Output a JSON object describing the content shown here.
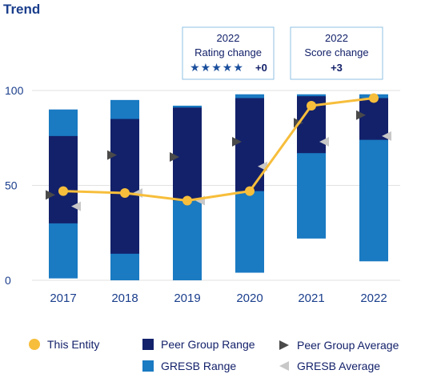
{
  "chart_data": {
    "type": "bar",
    "title": "Trend",
    "categories": [
      "2017",
      "2018",
      "2019",
      "2020",
      "2021",
      "2022"
    ],
    "ylim": [
      0,
      100
    ],
    "yticks": [
      0,
      50,
      100
    ],
    "grid": true,
    "series": [
      {
        "name": "GRESB Range",
        "kind": "range-bar",
        "color": "#1a7ac2",
        "low": [
          1,
          0,
          0,
          4,
          22,
          10
        ],
        "high": [
          90,
          95,
          92,
          98,
          98,
          98
        ]
      },
      {
        "name": "Peer Group Range",
        "kind": "range-bar",
        "color": "#13216a",
        "low": [
          30,
          14,
          42,
          47,
          67,
          74
        ],
        "high": [
          76,
          85,
          91,
          96,
          97,
          96
        ]
      },
      {
        "name": "This Entity",
        "kind": "line",
        "color": "#f7be3b",
        "values": [
          47,
          46,
          42,
          47,
          92,
          96
        ]
      },
      {
        "name": "Peer Group Average",
        "kind": "marker",
        "color": "#4a4a4a",
        "values": [
          45,
          66,
          65,
          73,
          83,
          87
        ]
      },
      {
        "name": "GRESB Average",
        "kind": "marker",
        "color": "#c8c8c8",
        "values": [
          39,
          46,
          42,
          60,
          73,
          76
        ]
      }
    ],
    "legend": "bottom"
  },
  "callouts": [
    {
      "year": "2022",
      "label": "Rating change",
      "stars": "★★★★★",
      "value": "+0"
    },
    {
      "year": "2022",
      "label": "Score change",
      "value": "+3"
    }
  ],
  "legend_items": [
    {
      "label": "This Entity",
      "shape": "dot",
      "color": "#f7be3b"
    },
    {
      "label": "Peer Group Range",
      "shape": "square",
      "color": "#13216a"
    },
    {
      "label": "Peer Group Average",
      "shape": "triangle",
      "color": "#4a4a4a"
    },
    {
      "label": "GRESB Range",
      "shape": "square",
      "color": "#1a7ac2"
    },
    {
      "label": "GRESB Average",
      "shape": "triangle",
      "color": "#c8c8c8"
    }
  ],
  "colors": {
    "title": "#1a3e8c",
    "axis_text": "#1a3e8c",
    "grid": "#e2e2e2",
    "callout_border": "#8fc1e3",
    "callout_text": "#13216a",
    "star": "#1a4e9c"
  }
}
